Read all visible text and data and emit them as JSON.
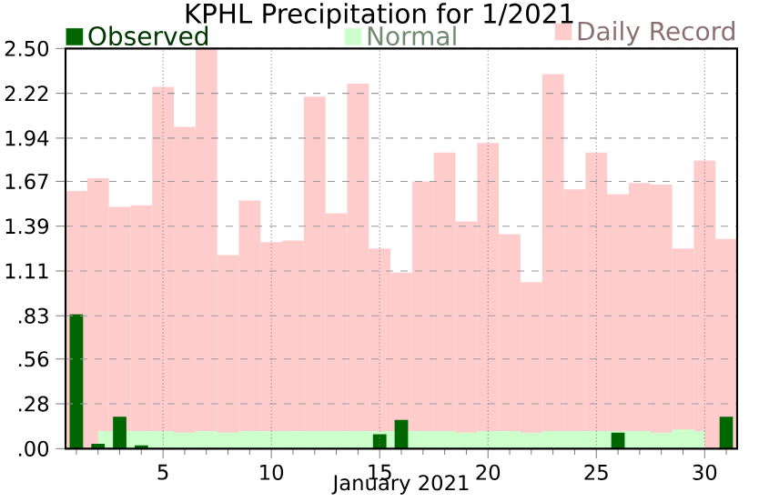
{
  "chart_data": {
    "type": "bar",
    "title": "KPHL Precipitation for 1/2021",
    "xlabel": "January 2021",
    "x": [
      1,
      2,
      3,
      4,
      5,
      6,
      7,
      8,
      9,
      10,
      11,
      12,
      13,
      14,
      15,
      16,
      17,
      18,
      19,
      20,
      21,
      22,
      23,
      24,
      25,
      26,
      27,
      28,
      29,
      30,
      31
    ],
    "series": [
      {
        "name": "Observed",
        "color": "#006600",
        "values": [
          0.84,
          0.03,
          0.2,
          0.02,
          0,
          0,
          0,
          0,
          0,
          0,
          0,
          0,
          0,
          0,
          0.09,
          0.18,
          0,
          0,
          0,
          0,
          0,
          0,
          0,
          0,
          0,
          0.1,
          0,
          0,
          0,
          0,
          0.2
        ]
      },
      {
        "name": "Normal",
        "type": "area",
        "color": "#ccffcc",
        "values": [
          null,
          0.11,
          null,
          0.11,
          0.11,
          0.1,
          0.11,
          0.1,
          0.11,
          0.11,
          0.11,
          0.11,
          0.11,
          0.11,
          0.11,
          0.11,
          0.11,
          0.11,
          0.1,
          0.11,
          0.11,
          0.1,
          0.11,
          0.11,
          0.11,
          0.11,
          0.11,
          0.1,
          0.12,
          0.11,
          null
        ]
      },
      {
        "name": "Daily Record",
        "color": "#ffcccc",
        "values": [
          1.61,
          1.69,
          1.51,
          1.52,
          2.26,
          2.01,
          2.5,
          1.21,
          1.55,
          1.29,
          1.3,
          2.2,
          1.47,
          2.28,
          1.25,
          1.1,
          1.67,
          1.85,
          1.42,
          1.91,
          1.34,
          1.04,
          2.34,
          1.62,
          1.85,
          1.59,
          1.66,
          1.65,
          1.25,
          1.8,
          1.31
        ]
      }
    ],
    "xlim": [
      0.5,
      31.5
    ],
    "xticks": [
      {
        "value": 1,
        "label": null
      },
      {
        "value": 2,
        "label": null
      },
      {
        "value": 3,
        "label": null
      },
      {
        "value": 4,
        "label": null
      },
      5,
      {
        "value": 6,
        "label": null
      },
      {
        "value": 7,
        "label": null
      },
      {
        "value": 8,
        "label": null
      },
      {
        "value": 9,
        "label": null
      },
      10,
      {
        "value": 11,
        "label": null
      },
      {
        "value": 12,
        "label": null
      },
      {
        "value": 13,
        "label": null
      },
      {
        "value": 14,
        "label": null
      },
      15,
      {
        "value": 16,
        "label": null
      },
      {
        "value": 17,
        "label": null
      },
      {
        "value": 18,
        "label": null
      },
      {
        "value": 19,
        "label": null
      },
      20,
      {
        "value": 21,
        "label": null
      },
      {
        "value": 22,
        "label": null
      },
      {
        "value": 23,
        "label": null
      },
      {
        "value": 24,
        "label": null
      },
      25,
      {
        "value": 26,
        "label": null
      },
      {
        "value": 27,
        "label": null
      },
      {
        "value": 28,
        "label": null
      },
      {
        "value": 29,
        "label": null
      },
      30,
      {
        "value": 31,
        "label": null
      }
    ],
    "ylim": [
      0,
      2.5
    ],
    "yticks": [
      {
        "value": 0,
        "label": ".00"
      },
      {
        "value": 0.28,
        "label": ".28"
      },
      {
        "value": 0.56,
        "label": ".56"
      },
      {
        "value": 0.83,
        "label": ".83"
      },
      1.11,
      1.39,
      1.67,
      1.94,
      2.22,
      {
        "value": 2.5,
        "label": "2.50"
      }
    ],
    "grid": true,
    "legend": "top"
  }
}
